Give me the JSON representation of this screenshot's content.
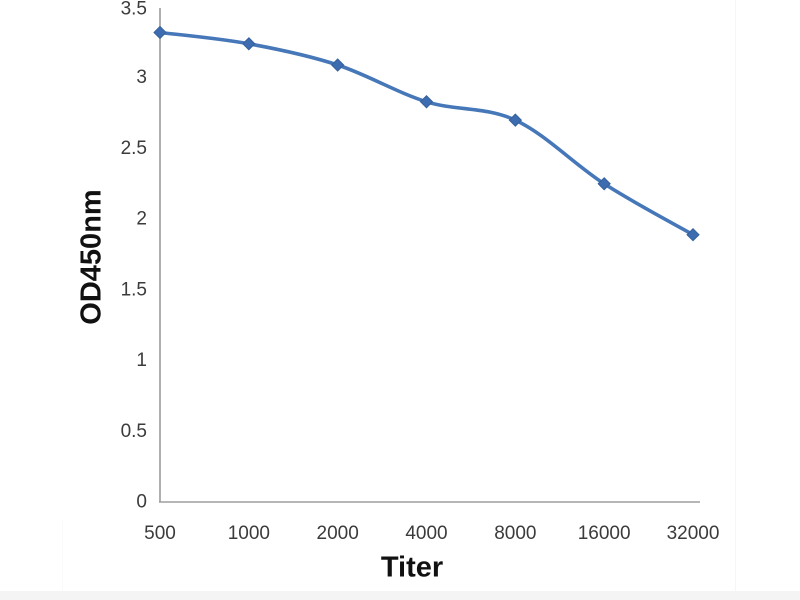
{
  "chart_data": {
    "type": "line",
    "title": "",
    "xlabel": "Titer",
    "ylabel": "OD450nm",
    "categories": [
      "500",
      "1000",
      "2000",
      "4000",
      "8000",
      "16000",
      "32000"
    ],
    "series": [
      {
        "name": "OD450nm",
        "values": [
          3.32,
          3.24,
          3.09,
          2.83,
          2.7,
          2.25,
          1.89
        ]
      }
    ],
    "ylim": [
      0,
      3.5
    ],
    "y_ticks": [
      0,
      0.5,
      1,
      1.5,
      2,
      2.5,
      3,
      3.5
    ],
    "grid": false,
    "legend": "none",
    "marker": "diamond",
    "smooth": true,
    "colors": {
      "line": "#4677b8",
      "marker_fill": "#3e6cb0",
      "marker_stroke": "#35619b",
      "axis": "#9d9d9d",
      "tick_text": "#3b3b3b",
      "title_text": "#111111",
      "background": "#ffffff"
    }
  }
}
